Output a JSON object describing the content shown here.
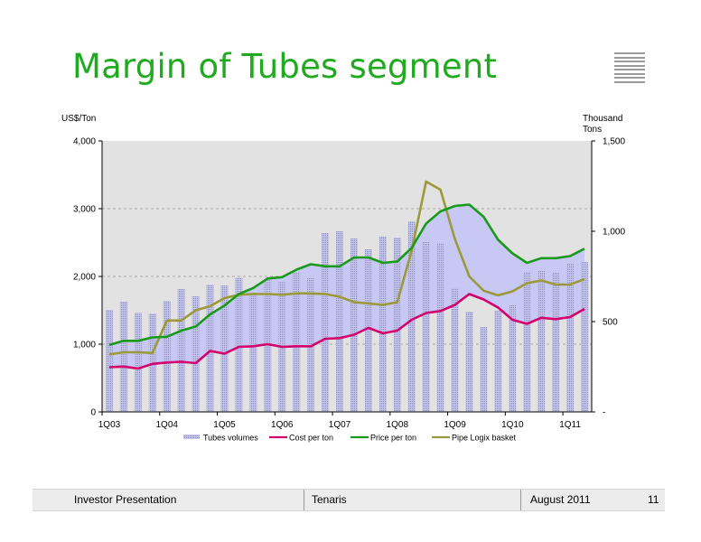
{
  "page": {
    "title": "Margin of Tubes segment",
    "footer": {
      "left": "Investor  Presentation",
      "center": "Tenaris",
      "date": "August 2011",
      "page_number": "11"
    }
  },
  "chart_data": {
    "type": "bar",
    "title": "",
    "ylabel_left": "US$/Ton",
    "ylabel_right": [
      "Thousand",
      "Tons"
    ],
    "ylim_left": [
      0,
      4000
    ],
    "ylim_right": [
      0,
      1500
    ],
    "left_ticks": [
      "0",
      "1,000",
      "2,000",
      "3,000",
      "4,000"
    ],
    "right_ticks": [
      "-",
      "500",
      "1,000",
      "1,500"
    ],
    "x_tick_labels": [
      "1Q03",
      "1Q04",
      "1Q05",
      "1Q06",
      "1Q07",
      "1Q08",
      "1Q09",
      "1Q10",
      "1Q11"
    ],
    "grid": "horizontal dashed",
    "legend_position": "bottom",
    "categories": [
      "1Q03",
      "2Q03",
      "3Q03",
      "4Q03",
      "1Q04",
      "2Q04",
      "3Q04",
      "4Q04",
      "1Q05",
      "2Q05",
      "3Q05",
      "4Q05",
      "1Q06",
      "2Q06",
      "3Q06",
      "4Q06",
      "1Q07",
      "2Q07",
      "3Q07",
      "4Q07",
      "1Q08",
      "2Q08",
      "3Q08",
      "4Q08",
      "1Q09",
      "2Q09",
      "3Q09",
      "4Q09",
      "1Q10",
      "2Q10",
      "3Q10",
      "4Q10",
      "1Q11",
      "2Q11"
    ],
    "series": [
      {
        "name": "Tubes volumes",
        "kind": "bar",
        "axis": "right",
        "color": "#a9a9d6",
        "values": [
          565,
          610,
          548,
          545,
          615,
          680,
          640,
          705,
          700,
          742,
          660,
          730,
          720,
          775,
          745,
          990,
          1000,
          960,
          900,
          970,
          965,
          1055,
          940,
          935,
          685,
          555,
          470,
          560,
          595,
          775,
          785,
          770,
          825,
          830
        ]
      },
      {
        "name": "Cost per ton",
        "kind": "line",
        "axis": "left",
        "color": "#d4006e",
        "values": [
          660,
          670,
          640,
          710,
          730,
          740,
          720,
          900,
          860,
          960,
          970,
          1000,
          960,
          970,
          970,
          1080,
          1090,
          1140,
          1240,
          1160,
          1200,
          1360,
          1460,
          1490,
          1580,
          1740,
          1660,
          1540,
          1360,
          1300,
          1390,
          1370,
          1400,
          1520
        ]
      },
      {
        "name": "Price per ton",
        "kind": "line",
        "axis": "left",
        "color": "#1a9a1a",
        "values": [
          990,
          1050,
          1050,
          1100,
          1110,
          1200,
          1260,
          1440,
          1570,
          1740,
          1830,
          1970,
          1990,
          2100,
          2180,
          2150,
          2150,
          2280,
          2280,
          2200,
          2220,
          2420,
          2780,
          2960,
          3040,
          3060,
          2880,
          2540,
          2340,
          2200,
          2270,
          2270,
          2300,
          2410
        ]
      },
      {
        "name": "Pipe Logix basket",
        "kind": "line",
        "axis": "left",
        "color": "#9a9a3a",
        "values": [
          850,
          880,
          880,
          870,
          1350,
          1350,
          1500,
          1560,
          1680,
          1730,
          1740,
          1740,
          1730,
          1750,
          1750,
          1740,
          1700,
          1620,
          1600,
          1580,
          1620,
          2380,
          3400,
          3280,
          2550,
          2000,
          1790,
          1720,
          1780,
          1900,
          1940,
          1880,
          1880,
          1960
        ]
      }
    ]
  }
}
